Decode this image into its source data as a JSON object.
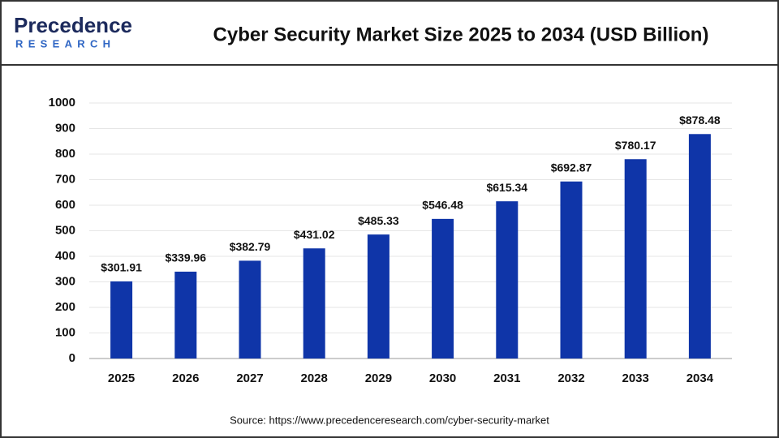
{
  "logo": {
    "name": "Precedence",
    "tagline": "RESEARCH"
  },
  "chart_data": {
    "type": "bar",
    "title": "Cyber Security Market Size 2025 to 2034 (USD Billion)",
    "categories": [
      "2025",
      "2026",
      "2027",
      "2028",
      "2029",
      "2030",
      "2031",
      "2032",
      "2033",
      "2034"
    ],
    "values": [
      301.91,
      339.96,
      382.79,
      431.02,
      485.33,
      546.48,
      615.34,
      692.87,
      780.17,
      878.48
    ],
    "value_labels": [
      "$301.91",
      "$339.96",
      "$382.79",
      "$431.02",
      "$485.33",
      "$546.48",
      "$615.34",
      "$692.87",
      "$780.17",
      "$878.48"
    ],
    "color": "#0f35a8",
    "ylim": [
      0,
      1000
    ],
    "yticks": [
      0,
      100,
      200,
      300,
      400,
      500,
      600,
      700,
      800,
      900,
      1000
    ],
    "grid": true
  },
  "source": "Source: https://www.precedenceresearch.com/cyber-security-market"
}
